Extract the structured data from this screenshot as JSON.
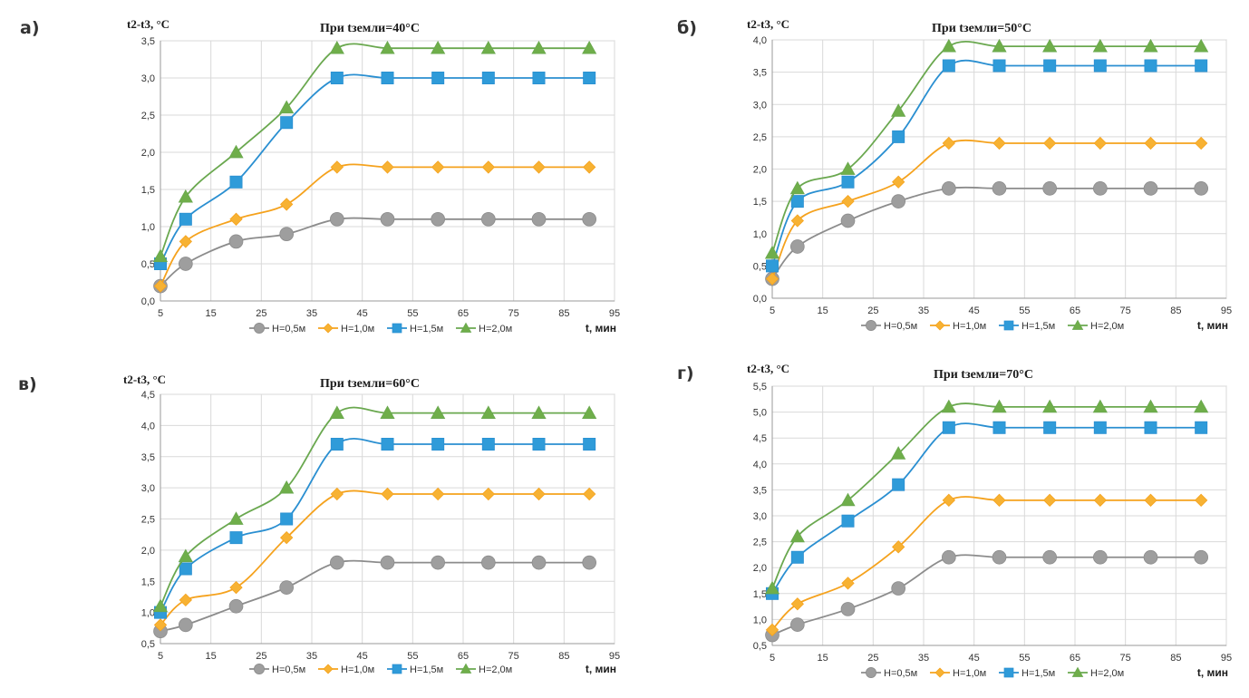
{
  "chart_data": [
    {
      "type": "line",
      "panel_label": "а)",
      "title": "При tземли=40°С",
      "ylabel": "t2-t3, °С",
      "xlabel": "t, мин",
      "ylim": [
        0,
        3.5
      ],
      "ystep": 0.5,
      "xlim": [
        5,
        95
      ],
      "xticks": [
        5,
        15,
        25,
        35,
        45,
        55,
        65,
        75,
        85,
        95
      ],
      "yticks": [
        "0,0",
        "0,5",
        "1,0",
        "1,5",
        "2,0",
        "2,5",
        "3,0",
        "3,5"
      ],
      "x": [
        5,
        10,
        20,
        30,
        40,
        50,
        60,
        70,
        80,
        90
      ],
      "series": [
        {
          "name": "H=0,5м",
          "values": [
            0.2,
            0.5,
            0.8,
            0.9,
            1.1,
            1.1,
            1.1,
            1.1,
            1.1,
            1.1
          ]
        },
        {
          "name": "H=1,0м",
          "values": [
            0.2,
            0.8,
            1.1,
            1.3,
            1.8,
            1.8,
            1.8,
            1.8,
            1.8,
            1.8
          ]
        },
        {
          "name": "H=1,5м",
          "values": [
            0.5,
            1.1,
            1.6,
            2.4,
            3.0,
            3.0,
            3.0,
            3.0,
            3.0,
            3.0
          ]
        },
        {
          "name": "H=2,0м",
          "values": [
            0.6,
            1.4,
            2.0,
            2.6,
            3.4,
            3.4,
            3.4,
            3.4,
            3.4,
            3.4
          ]
        }
      ]
    },
    {
      "type": "line",
      "panel_label": "б)",
      "title": "При tземли=50°С",
      "ylabel": "t2-t3, °С",
      "xlabel": "t, мин",
      "ylim": [
        0,
        4.0
      ],
      "ystep": 0.5,
      "xlim": [
        5,
        95
      ],
      "xticks": [
        5,
        15,
        25,
        35,
        45,
        55,
        65,
        75,
        85,
        95
      ],
      "yticks": [
        "0,0",
        "0,5",
        "1,0",
        "1,5",
        "2,0",
        "2,5",
        "3,0",
        "3,5",
        "4,0"
      ],
      "x": [
        5,
        10,
        20,
        30,
        40,
        50,
        60,
        70,
        80,
        90
      ],
      "series": [
        {
          "name": "H=0,5м",
          "values": [
            0.3,
            0.8,
            1.2,
            1.5,
            1.7,
            1.7,
            1.7,
            1.7,
            1.7,
            1.7
          ]
        },
        {
          "name": "H=1,0м",
          "values": [
            0.3,
            1.2,
            1.5,
            1.8,
            2.4,
            2.4,
            2.4,
            2.4,
            2.4,
            2.4
          ]
        },
        {
          "name": "H=1,5м",
          "values": [
            0.5,
            1.5,
            1.8,
            2.5,
            3.6,
            3.6,
            3.6,
            3.6,
            3.6,
            3.6
          ]
        },
        {
          "name": "H=2,0м",
          "values": [
            0.7,
            1.7,
            2.0,
            2.9,
            3.9,
            3.9,
            3.9,
            3.9,
            3.9,
            3.9
          ]
        }
      ]
    },
    {
      "type": "line",
      "panel_label": "в)",
      "title": "При tземли=60°С",
      "ylabel": "t2-t3, °С",
      "xlabel": "t, мин",
      "ylim": [
        0.5,
        4.5
      ],
      "ystep": 0.5,
      "xlim": [
        5,
        95
      ],
      "xticks": [
        5,
        15,
        25,
        35,
        45,
        55,
        65,
        75,
        85,
        95
      ],
      "yticks": [
        "0,5",
        "1,0",
        "1,5",
        "2,0",
        "2,5",
        "3,0",
        "3,5",
        "4,0",
        "4,5"
      ],
      "x": [
        5,
        10,
        20,
        30,
        40,
        50,
        60,
        70,
        80,
        90
      ],
      "series": [
        {
          "name": "H=0,5м",
          "values": [
            0.7,
            0.8,
            1.1,
            1.4,
            1.8,
            1.8,
            1.8,
            1.8,
            1.8,
            1.8
          ]
        },
        {
          "name": "H=1,0м",
          "values": [
            0.8,
            1.2,
            1.4,
            2.2,
            2.9,
            2.9,
            2.9,
            2.9,
            2.9,
            2.9
          ]
        },
        {
          "name": "H=1,5м",
          "values": [
            1.0,
            1.7,
            2.2,
            2.5,
            3.7,
            3.7,
            3.7,
            3.7,
            3.7,
            3.7
          ]
        },
        {
          "name": "H=2,0м",
          "values": [
            1.1,
            1.9,
            2.5,
            3.0,
            4.2,
            4.2,
            4.2,
            4.2,
            4.2,
            4.2
          ]
        }
      ]
    },
    {
      "type": "line",
      "panel_label": "г)",
      "title": "При tземли=70°С",
      "ylabel": "t2-t3, °С",
      "xlabel": "t, мин",
      "ylim": [
        0.5,
        5.5
      ],
      "ystep": 0.5,
      "xlim": [
        5,
        95
      ],
      "xticks": [
        5,
        15,
        25,
        35,
        45,
        55,
        65,
        75,
        85,
        95
      ],
      "yticks": [
        "0,5",
        "1,0",
        "1,5",
        "2,0",
        "2,5",
        "3,0",
        "3,5",
        "4,0",
        "4,5",
        "5,0",
        "5,5"
      ],
      "x": [
        5,
        10,
        20,
        30,
        40,
        50,
        60,
        70,
        80,
        90
      ],
      "series": [
        {
          "name": "H=0,5м",
          "values": [
            0.7,
            0.9,
            1.2,
            1.6,
            2.2,
            2.2,
            2.2,
            2.2,
            2.2,
            2.2
          ]
        },
        {
          "name": "H=1,0м",
          "values": [
            0.8,
            1.3,
            1.7,
            2.4,
            3.3,
            3.3,
            3.3,
            3.3,
            3.3,
            3.3
          ]
        },
        {
          "name": "H=1,5м",
          "values": [
            1.5,
            2.2,
            2.9,
            3.6,
            4.7,
            4.7,
            4.7,
            4.7,
            4.7,
            4.7
          ]
        },
        {
          "name": "H=2,0м",
          "values": [
            1.6,
            2.6,
            3.3,
            4.2,
            5.1,
            5.1,
            5.1,
            5.1,
            5.1,
            5.1
          ]
        }
      ]
    }
  ],
  "series_style": {
    "colors": [
      "#8c8c8c",
      "#f5a21d",
      "#2a8fd1",
      "#6aa84f"
    ],
    "marker_fill": [
      "#9e9e9e",
      "#f7b233",
      "#2f9bd9",
      "#6fae4a"
    ],
    "markers": [
      "circle",
      "diamond",
      "square",
      "triangle"
    ]
  }
}
